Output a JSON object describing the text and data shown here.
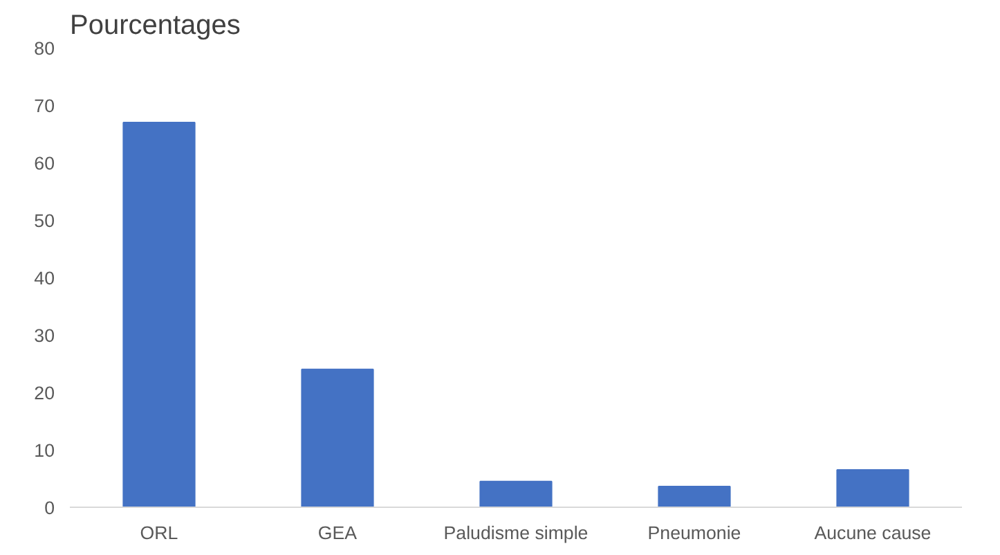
{
  "chart_data": {
    "type": "bar",
    "title": "Pourcentages",
    "categories": [
      "ORL",
      "GEA",
      "Paludisme simple",
      "Pneumonie",
      "Aucune cause"
    ],
    "values": [
      67,
      24,
      4.5,
      3.6,
      6.5
    ],
    "color": "#4472c4",
    "ylim": [
      0,
      80
    ],
    "yticks": [
      0,
      10,
      20,
      30,
      40,
      50,
      60,
      70,
      80
    ],
    "grid": false
  }
}
